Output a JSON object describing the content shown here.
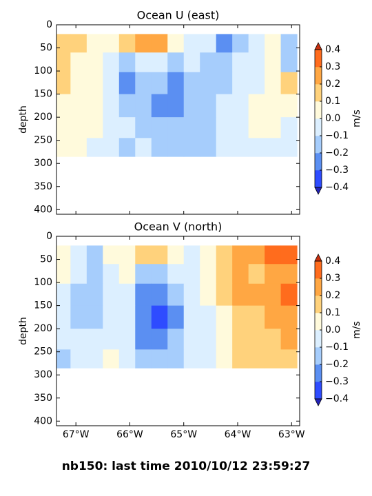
{
  "suptitle": "nb150: last time 2010/10/12 23:59:27",
  "chart_data": [
    {
      "type": "contour",
      "title": "Ocean U (east)",
      "ylabel": "depth",
      "colorbar_label": "m/s",
      "xlim": [
        -67.36,
        -62.85
      ],
      "ylim": [
        410,
        0
      ],
      "xticks": [
        -67,
        -66,
        -65,
        -64,
        -63
      ],
      "yticks": [
        0,
        50,
        100,
        150,
        200,
        250,
        300,
        350,
        400
      ],
      "cticks": [
        {
          "value": -0.4,
          "label": "−0.4"
        },
        {
          "value": -0.3,
          "label": "−0.3"
        },
        {
          "value": -0.2,
          "label": "−0.2"
        },
        {
          "value": -0.1,
          "label": "−0.1"
        },
        {
          "value": 0,
          "label": "0.0"
        },
        0.1,
        0.2,
        0.3,
        0.4
      ],
      "colors": [
        "#2e4cff",
        "#5b8ff2",
        "#a6cdfc",
        "#dcefff",
        "#fffadc",
        "#ffd27c",
        "#ffa743",
        "#ff6c1d"
      ],
      "under_color": "#2323b8",
      "over_color": "#c7300f",
      "x": [
        -67.25,
        -66.95,
        -66.65,
        -66.35,
        -66.05,
        -65.75,
        -65.45,
        -65.15,
        -64.85,
        -64.55,
        -64.25,
        -63.95,
        -63.65,
        -63.35,
        -63.05
      ],
      "depth": [
        40,
        80,
        125,
        175,
        225,
        265
      ],
      "z": [
        [
          0.15,
          0.1,
          0.05,
          0.0,
          0.15,
          0.25,
          0.22,
          0.05,
          -0.05,
          -0.1,
          -0.25,
          -0.15,
          -0.05,
          0.05,
          -0.15
        ],
        [
          0.12,
          0.05,
          0.02,
          -0.05,
          -0.15,
          -0.1,
          -0.1,
          -0.12,
          -0.1,
          -0.12,
          -0.15,
          -0.1,
          -0.05,
          0.0,
          -0.15
        ],
        [
          0.12,
          0.05,
          0.0,
          -0.05,
          -0.25,
          -0.15,
          -0.2,
          -0.3,
          -0.15,
          -0.12,
          -0.12,
          -0.05,
          -0.02,
          0.02,
          0.12
        ],
        [
          0.05,
          0.05,
          0.02,
          -0.05,
          -0.15,
          -0.12,
          -0.25,
          -0.3,
          -0.15,
          -0.12,
          -0.1,
          -0.05,
          0.02,
          0.05,
          0.05
        ],
        [
          0.05,
          0.02,
          0.0,
          -0.05,
          -0.1,
          -0.12,
          -0.15,
          -0.2,
          -0.15,
          -0.12,
          -0.1,
          -0.05,
          0.02,
          0.02,
          -0.05
        ],
        [
          0.02,
          0.0,
          -0.05,
          -0.05,
          -0.12,
          -0.1,
          -0.12,
          -0.15,
          -0.15,
          -0.12,
          -0.1,
          -0.05,
          -0.02,
          -0.02,
          -0.05
        ]
      ]
    },
    {
      "type": "contour",
      "title": "Ocean V (north)",
      "ylabel": "depth",
      "colorbar_label": "m/s",
      "xlim": [
        -67.36,
        -62.85
      ],
      "ylim": [
        410,
        0
      ],
      "xticks": [
        {
          "value": -67,
          "label": "67°W"
        },
        {
          "value": -66,
          "label": "66°W"
        },
        {
          "value": -65,
          "label": "65°W"
        },
        {
          "value": -64,
          "label": "64°W"
        },
        {
          "value": -63,
          "label": "63°W"
        }
      ],
      "yticks": [
        0,
        50,
        100,
        150,
        200,
        250,
        300,
        350,
        400
      ],
      "cticks": [
        {
          "value": -0.4,
          "label": "−0.4"
        },
        {
          "value": -0.3,
          "label": "−0.3"
        },
        {
          "value": -0.2,
          "label": "−0.2"
        },
        {
          "value": -0.1,
          "label": "−0.1"
        },
        {
          "value": 0,
          "label": "0.0"
        },
        0.1,
        0.2,
        0.3,
        0.4
      ],
      "colors": [
        "#2e4cff",
        "#5b8ff2",
        "#a6cdfc",
        "#dcefff",
        "#fffadc",
        "#ffd27c",
        "#ffa743",
        "#ff6c1d"
      ],
      "under_color": "#2323b8",
      "over_color": "#c7300f",
      "x": [
        -67.25,
        -66.95,
        -66.65,
        -66.35,
        -66.05,
        -65.75,
        -65.45,
        -65.15,
        -64.85,
        -64.55,
        -64.25,
        -63.95,
        -63.65,
        -63.35,
        -63.05
      ],
      "depth": [
        40,
        80,
        125,
        175,
        225,
        265
      ],
      "z": [
        [
          0.05,
          -0.05,
          -0.12,
          0.02,
          0.05,
          0.15,
          0.12,
          0.05,
          -0.05,
          0.05,
          0.15,
          0.2,
          0.25,
          0.3,
          0.35
        ],
        [
          0.02,
          -0.1,
          -0.15,
          -0.05,
          0.02,
          -0.15,
          -0.2,
          -0.1,
          -0.05,
          0.05,
          0.15,
          0.2,
          0.15,
          0.25,
          0.25
        ],
        [
          -0.05,
          -0.12,
          -0.15,
          -0.05,
          -0.1,
          -0.25,
          -0.3,
          -0.2,
          -0.05,
          0.0,
          0.1,
          0.2,
          0.2,
          0.25,
          0.3
        ],
        [
          -0.1,
          -0.15,
          -0.12,
          -0.05,
          -0.1,
          -0.25,
          -0.35,
          -0.25,
          -0.1,
          -0.02,
          0.05,
          0.15,
          0.15,
          0.2,
          0.2
        ],
        [
          -0.1,
          -0.1,
          -0.08,
          -0.02,
          -0.1,
          -0.25,
          -0.25,
          -0.15,
          -0.1,
          -0.02,
          0.05,
          0.1,
          0.15,
          0.15,
          0.2
        ],
        [
          -0.12,
          -0.05,
          -0.05,
          0.02,
          -0.1,
          -0.2,
          -0.2,
          -0.12,
          -0.1,
          -0.02,
          0.05,
          0.1,
          0.1,
          0.15,
          0.15
        ]
      ]
    }
  ]
}
